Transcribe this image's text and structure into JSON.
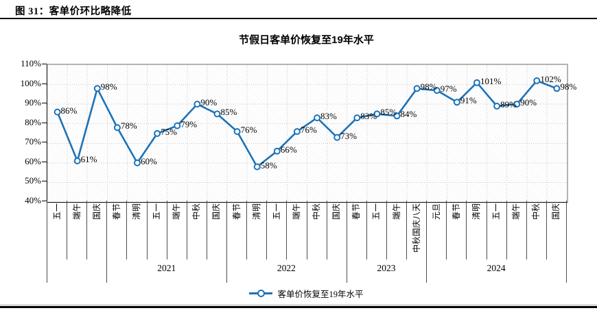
{
  "figure": {
    "caption": "图 31：客单价环比略降低"
  },
  "chart_data": {
    "type": "line",
    "title": "节假日客单价恢复至19年水平",
    "legend_label": "客单价恢复至19年水平",
    "legend_position": "bottom",
    "line_color": "#1b72b8",
    "grid": true,
    "y_axis": {
      "min": 40,
      "max": 110,
      "step": 10,
      "ticks": [
        "110%",
        "100%",
        "90%",
        "80%",
        "70%",
        "60%",
        "50%",
        "40%"
      ]
    },
    "categories": [
      "五一",
      "端午",
      "国庆",
      "春节",
      "清明",
      "五一",
      "端午",
      "中秋",
      "国庆",
      "春节",
      "清明",
      "五一",
      "端午",
      "中秋",
      "国庆",
      "春节",
      "五一",
      "端午",
      "中秋国庆八天",
      "元旦",
      "春节",
      "清明",
      "五一",
      "端午",
      "中秋",
      "国庆"
    ],
    "values": [
      86,
      61,
      98,
      78,
      60,
      75,
      79,
      90,
      85,
      76,
      58,
      66,
      76,
      83,
      73,
      83,
      85,
      84,
      98,
      97,
      91,
      101,
      89,
      90,
      102,
      98
    ],
    "value_labels": [
      "86%",
      "61%",
      "98%",
      "78%",
      "60%",
      "75%",
      "79%",
      "90%",
      "85%",
      "76%",
      "58%",
      "66%",
      "76%",
      "83%",
      "73%",
      "83%",
      "85%",
      "84%",
      "98%",
      "97%",
      "91%",
      "101%",
      "89%",
      "90%",
      "102%",
      "98%"
    ],
    "year_groups": [
      {
        "label": "",
        "count": 3
      },
      {
        "label": "2021",
        "count": 6
      },
      {
        "label": "2022",
        "count": 6
      },
      {
        "label": "2023",
        "count": 4
      },
      {
        "label": "2024",
        "count": 7
      }
    ]
  }
}
